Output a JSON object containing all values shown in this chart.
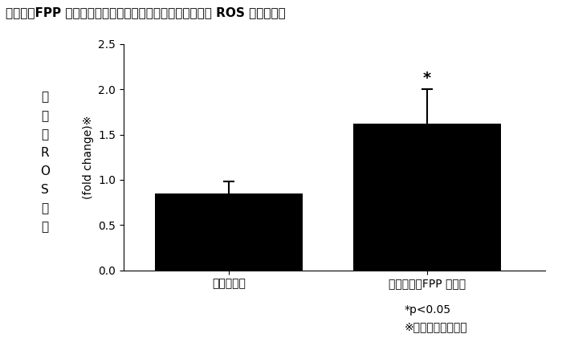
{
  "title": "》図1》 FPP 摄取によるヒトの慢性創傷炎症細脹における ROS 産生の誘導",
  "title_raw": "【図１】FPP 摂取によるヒトの慢性創傷炎症細胞における ROS 産生の誘導",
  "categories": [
    "標準治療群",
    "標準治療＋FPP 摂取群"
  ],
  "values": [
    0.85,
    1.62
  ],
  "errors": [
    0.13,
    0.38
  ],
  "bar_color": "#000000",
  "bar_width": 0.35,
  "ylim": [
    0,
    2.5
  ],
  "yticks": [
    0.0,
    0.5,
    1.0,
    1.5,
    2.0,
    2.5
  ],
  "ylabel_japanese_chars": [
    "誘",
    "導",
    "型",
    "R",
    "O",
    "S",
    "産",
    "生"
  ],
  "ylabel_english": "(fold change)×",
  "footnote1": "*p<0.05",
  "footnote2": "※初回診察時との比",
  "asterisk_bar": 1,
  "background_color": "#ffffff"
}
